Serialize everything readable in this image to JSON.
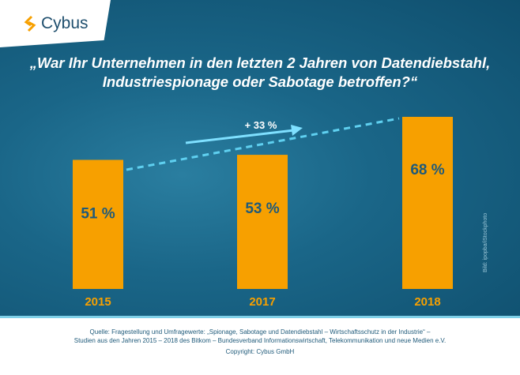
{
  "logo": {
    "text": "Cybus"
  },
  "title": {
    "line1": "„War Ihr Unternehmen in den letzten 2 Jahren von Datendiebstahl,",
    "line2": "Industriespionage oder Sabotage betroffen?“"
  },
  "chart_data": {
    "type": "bar",
    "categories": [
      "2015",
      "2017",
      "2018"
    ],
    "values": [
      51,
      53,
      68
    ],
    "value_labels": [
      "51 %",
      "53 %",
      "68 %"
    ],
    "annotation": "+ 33 %",
    "ylim": [
      0,
      68
    ],
    "bar_color": "#f7a000",
    "label_color": "#1f5a7a",
    "year_color": "#f7a000"
  },
  "image_credit": "Bild: ipopba/iStockphoto",
  "footer": {
    "line1": "Quelle: Fragestellung und Umfragewerte: „Spionage, Sabotage und Datendiebstahl – Wirtschaftsschutz in der Industrie“ –",
    "line2": "Studien aus den Jahren 2015 – 2018 des Bitkom – Bundesverband Informationswirtschaft, Telekommunikation und neue Medien e.V.",
    "copyright": "Copyright: Cybus GmbH"
  }
}
